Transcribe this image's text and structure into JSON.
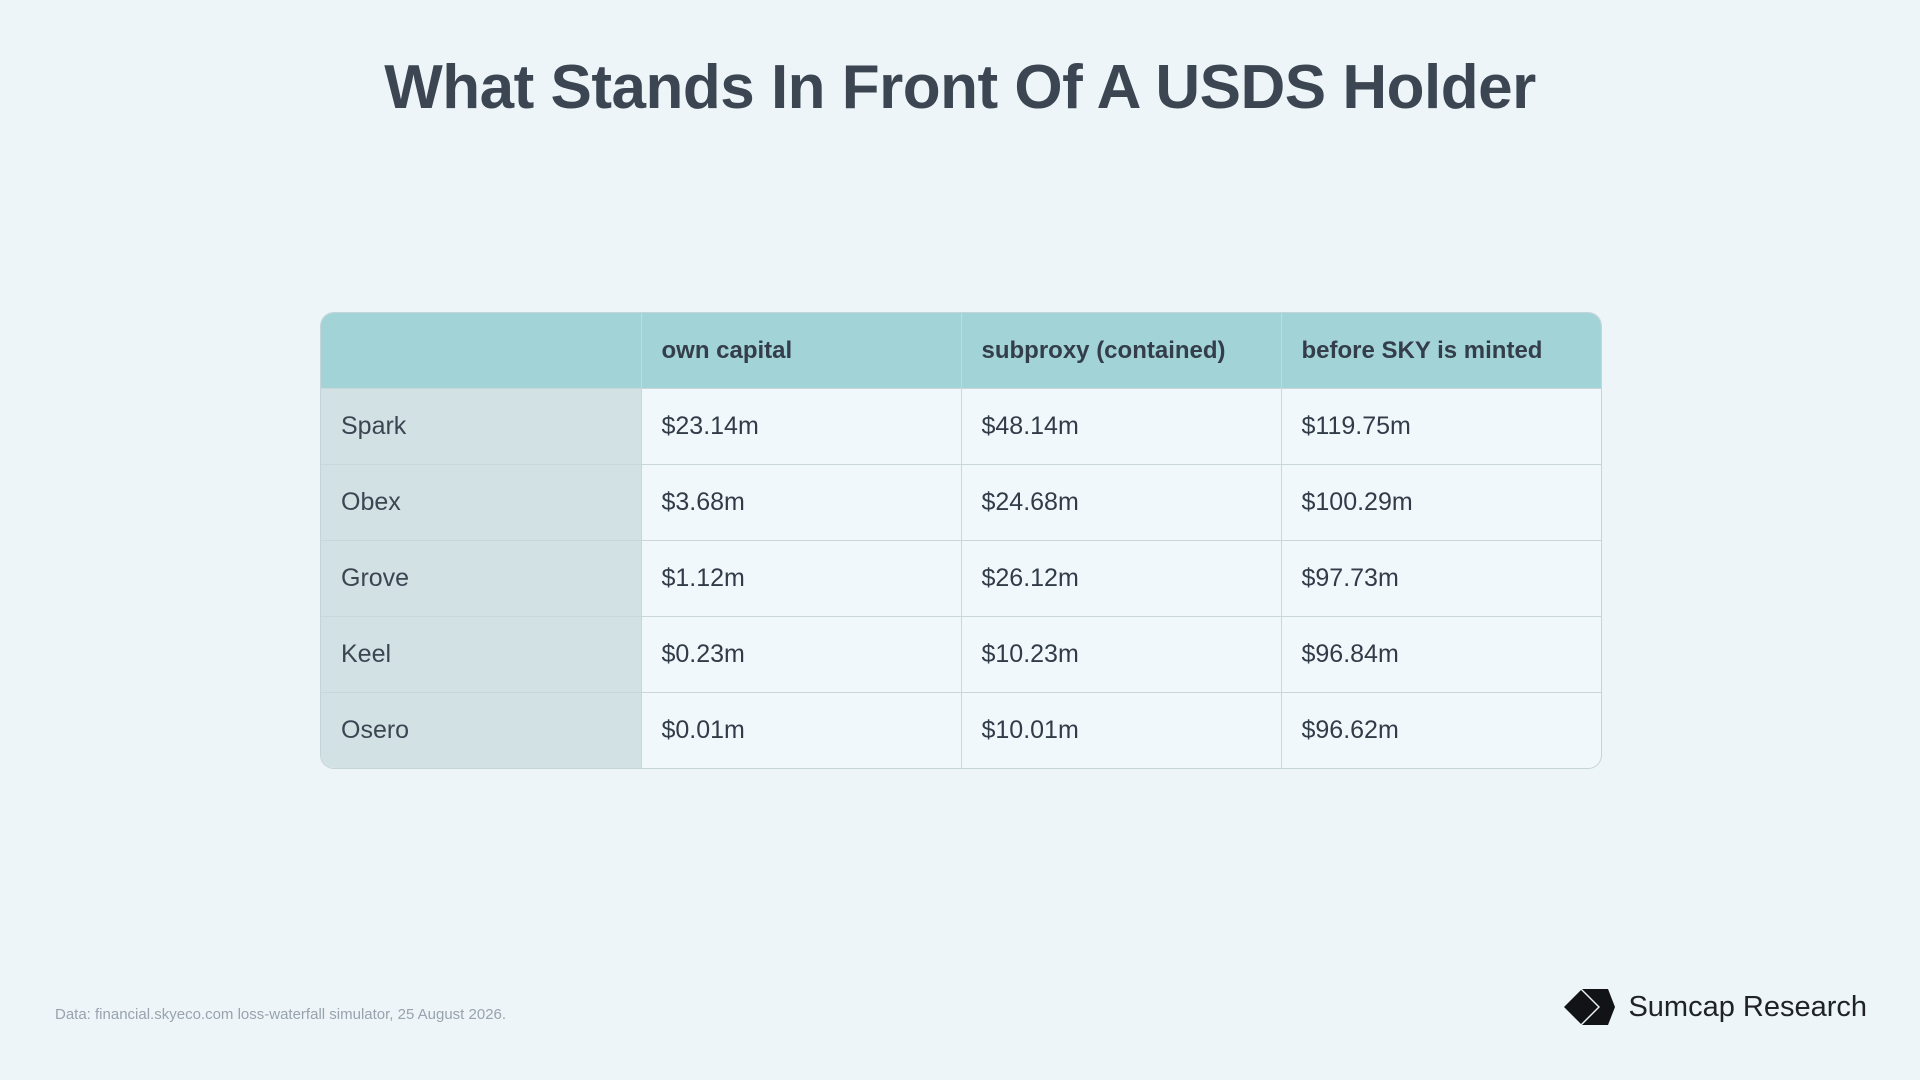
{
  "title": "What Stands In Front Of A USDS Holder",
  "chart_data": {
    "type": "table",
    "title": "What Stands In Front Of A USDS Holder",
    "columns": [
      "",
      "own capital",
      "subproxy (contained)",
      "before SKY is minted"
    ],
    "rows": [
      {
        "name": "Spark",
        "values": [
          "$23.14m",
          "$48.14m",
          "$119.75m"
        ]
      },
      {
        "name": "Obex",
        "values": [
          "$3.68m",
          "$24.68m",
          "$100.29m"
        ]
      },
      {
        "name": "Grove",
        "values": [
          "$1.12m",
          "$26.12m",
          "$97.73m"
        ]
      },
      {
        "name": "Keel",
        "values": [
          "$0.23m",
          "$10.23m",
          "$96.84m"
        ]
      },
      {
        "name": "Osero",
        "values": [
          "$0.01m",
          "$10.01m",
          "$96.62m"
        ]
      }
    ],
    "colors": {
      "header": "#a2d3d7",
      "row_label": "#d2e1e4",
      "cell": "#f1f8fb",
      "background": "#edf5f8"
    }
  },
  "footnote": "Data: financial.skyeco.com loss-waterfall simulator, 25 August 2026.",
  "brand": {
    "name": "Sumcap Research",
    "icon": "sumcap-logo-icon"
  }
}
